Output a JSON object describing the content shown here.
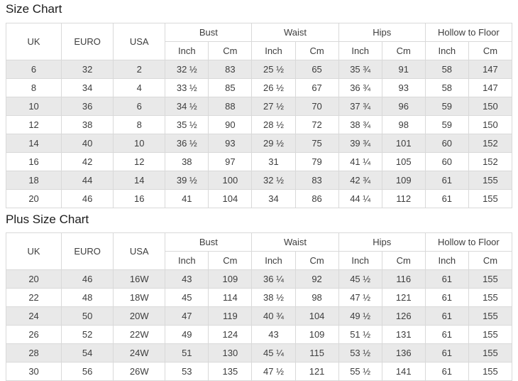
{
  "colors": {
    "border": "#d9d9d9",
    "row_stripe": "#e9e9e9",
    "cell_text": "#3d3d3d",
    "title_text": "#1c1c1c",
    "background": "#ffffff"
  },
  "size_chart": {
    "title": "Size Chart",
    "headers": {
      "uk": "UK",
      "euro": "EURO",
      "usa": "USA",
      "groups": [
        "Bust",
        "Waist",
        "Hips",
        "Hollow to Floor"
      ],
      "sub": [
        "Inch",
        "Cm"
      ]
    },
    "rows": [
      [
        "6",
        "32",
        "2",
        "32 ½",
        "83",
        "25 ½",
        "65",
        "35 ¾",
        "91",
        "58",
        "147"
      ],
      [
        "8",
        "34",
        "4",
        "33 ½",
        "85",
        "26 ½",
        "67",
        "36 ¾",
        "93",
        "58",
        "147"
      ],
      [
        "10",
        "36",
        "6",
        "34 ½",
        "88",
        "27 ½",
        "70",
        "37 ¾",
        "96",
        "59",
        "150"
      ],
      [
        "12",
        "38",
        "8",
        "35 ½",
        "90",
        "28 ½",
        "72",
        "38 ¾",
        "98",
        "59",
        "150"
      ],
      [
        "14",
        "40",
        "10",
        "36 ½",
        "93",
        "29 ½",
        "75",
        "39 ¾",
        "101",
        "60",
        "152"
      ],
      [
        "16",
        "42",
        "12",
        "38",
        "97",
        "31",
        "79",
        "41 ¼",
        "105",
        "60",
        "152"
      ],
      [
        "18",
        "44",
        "14",
        "39 ½",
        "100",
        "32 ½",
        "83",
        "42 ¾",
        "109",
        "61",
        "155"
      ],
      [
        "20",
        "46",
        "16",
        "41",
        "104",
        "34",
        "86",
        "44 ¼",
        "112",
        "61",
        "155"
      ]
    ]
  },
  "plus_size_chart": {
    "title": "Plus Size Chart",
    "headers": {
      "uk": "UK",
      "euro": "EURO",
      "usa": "USA",
      "groups": [
        "Bust",
        "Waist",
        "Hips",
        "Hollow to Floor"
      ],
      "sub": [
        "Inch",
        "Cm"
      ]
    },
    "rows": [
      [
        "20",
        "46",
        "16W",
        "43",
        "109",
        "36 ¼",
        "92",
        "45 ½",
        "116",
        "61",
        "155"
      ],
      [
        "22",
        "48",
        "18W",
        "45",
        "114",
        "38 ½",
        "98",
        "47 ½",
        "121",
        "61",
        "155"
      ],
      [
        "24",
        "50",
        "20W",
        "47",
        "119",
        "40 ¾",
        "104",
        "49 ½",
        "126",
        "61",
        "155"
      ],
      [
        "26",
        "52",
        "22W",
        "49",
        "124",
        "43",
        "109",
        "51 ½",
        "131",
        "61",
        "155"
      ],
      [
        "28",
        "54",
        "24W",
        "51",
        "130",
        "45 ¼",
        "115",
        "53 ½",
        "136",
        "61",
        "155"
      ],
      [
        "30",
        "56",
        "26W",
        "53",
        "135",
        "47 ½",
        "121",
        "55 ½",
        "141",
        "61",
        "155"
      ]
    ]
  }
}
